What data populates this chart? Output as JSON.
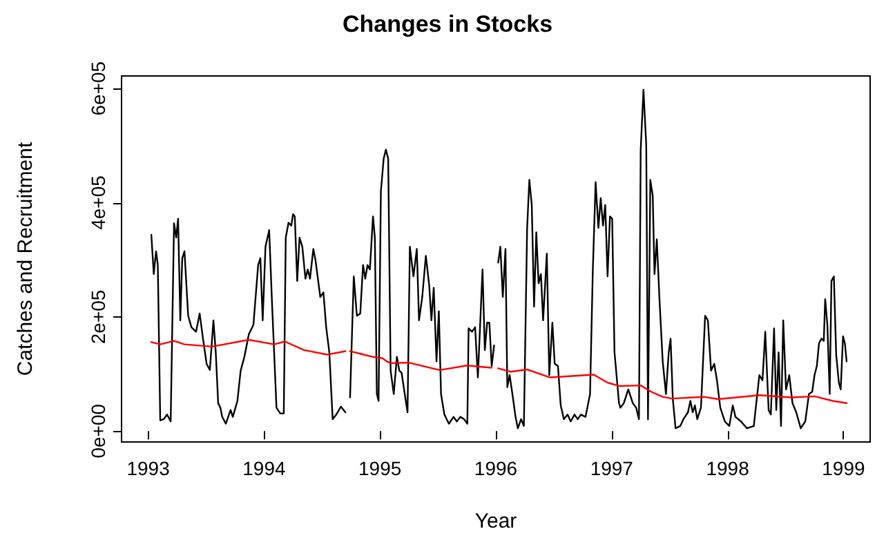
{
  "chart_data": {
    "type": "line",
    "title": "Changes in Stocks",
    "xlabel": "Year",
    "ylabel": "Catches and Recruitment",
    "marker": "none",
    "grid": false,
    "xlim": [
      1992.77,
      1999.23
    ],
    "xticks": [
      1993,
      1994,
      1995,
      1996,
      1997,
      1998,
      1999
    ],
    "ylim": [
      -19000,
      622000
    ],
    "yticks": [
      {
        "value": 0,
        "label": "0e+00"
      },
      {
        "value": 200000,
        "label": "2e+05"
      },
      {
        "value": 400000,
        "label": "4e+05"
      },
      {
        "value": 600000,
        "label": "6e+05"
      }
    ],
    "series": [
      {
        "color": "#000000",
        "x": [
          1993.027,
          1993.048,
          1993.068,
          1993.083,
          1993.104,
          1993.135,
          1993.163,
          1993.194,
          1993.223,
          1993.242,
          1993.258,
          1993.277,
          1993.294,
          1993.313,
          1993.345,
          1993.373,
          1993.413,
          1993.444,
          1993.473,
          1993.504,
          1993.532,
          1993.563,
          1993.583,
          1993.604,
          1993.623,
          1993.639,
          1993.67,
          1993.711,
          1993.73,
          1993.77,
          1993.798,
          1993.83,
          1993.869,
          1993.908,
          1993.949,
          1993.968,
          1993.988,
          1994.012,
          1994.044,
          1994.068,
          1994.107,
          1994.139,
          1994.17,
          1994.187,
          1994.211,
          1994.235,
          1994.25,
          1994.265,
          1994.286,
          1994.306,
          1994.33,
          1994.357,
          1994.377,
          1994.396,
          1994.425,
          1994.444,
          1994.485,
          1994.512,
          1994.536,
          1994.563,
          1994.592,
          1994.623,
          1994.663,
          1994.702,
          1994.722,
          1994.742,
          1994.774,
          1994.801,
          1994.83,
          1994.854,
          1994.873,
          1994.893,
          1994.913,
          1994.94,
          1994.956,
          1994.973,
          1994.988,
          1995.008,
          1995.032,
          1995.051,
          1995.071,
          1995.092,
          1995.119,
          1995.146,
          1995.167,
          1995.187,
          1995.211,
          1995.238,
          1995.258,
          1995.289,
          1995.318,
          1995.337,
          1995.365,
          1995.396,
          1995.425,
          1995.444,
          1995.464,
          1995.488,
          1995.508,
          1995.527,
          1995.556,
          1995.595,
          1995.635,
          1995.663,
          1995.694,
          1995.726,
          1995.754,
          1995.765,
          1995.794,
          1995.821,
          1995.845,
          1995.885,
          1995.905,
          1995.925,
          1995.944,
          1995.964,
          1995.985,
          1996.002,
          1996.02,
          1996.039,
          1996.06,
          1996.083,
          1996.099,
          1996.119,
          1996.143,
          1996.17,
          1996.19,
          1996.218,
          1996.242,
          1996.27,
          1996.289,
          1996.31,
          1996.33,
          1996.349,
          1996.369,
          1996.389,
          1996.408,
          1996.44,
          1996.461,
          1996.488,
          1996.508,
          1996.536,
          1996.56,
          1996.587,
          1996.619,
          1996.646,
          1996.679,
          1996.706,
          1996.735,
          1996.774,
          1996.813,
          1996.837,
          1996.861,
          1996.885,
          1996.905,
          1996.925,
          1996.944,
          1996.964,
          1996.985,
          1997.004,
          1997.024,
          1997.063,
          1997.075,
          1997.104,
          1997.143,
          1997.182,
          1997.211,
          1997.235,
          1997.25,
          1997.274,
          1997.298,
          1997.313,
          1997.333,
          1997.354,
          1997.369,
          1997.389,
          1997.413,
          1997.44,
          1997.468,
          1997.492,
          1997.508,
          1997.527,
          1997.551,
          1997.592,
          1997.619,
          1997.658,
          1997.679,
          1997.699,
          1997.718,
          1997.738,
          1997.77,
          1997.806,
          1997.83,
          1997.857,
          1997.885,
          1997.908,
          1997.937,
          1997.976,
          1998.015,
          1998.044,
          1998.068,
          1998.115,
          1998.167,
          1998.226,
          1998.274,
          1998.301,
          1998.325,
          1998.354,
          1998.373,
          1998.401,
          1998.42,
          1998.44,
          1998.461,
          1998.48,
          1998.504,
          1998.532,
          1998.56,
          1998.592,
          1998.631,
          1998.67,
          1998.702,
          1998.73,
          1998.75,
          1998.77,
          1998.789,
          1998.81,
          1998.83,
          1998.842,
          1998.861,
          1998.881,
          1998.896,
          1998.917,
          1998.937,
          1998.96,
          1998.976,
          1998.996,
          1999.012,
          1999.027
        ],
        "values": [
          344000,
          275000,
          315000,
          291000,
          19000,
          21000,
          29000,
          17000,
          364000,
          339000,
          372000,
          194000,
          303000,
          315000,
          202000,
          182000,
          174000,
          206000,
          162000,
          118000,
          107000,
          194000,
          138000,
          49000,
          41000,
          25000,
          13000,
          37000,
          25000,
          53000,
          106000,
          130000,
          170000,
          186000,
          291000,
          303000,
          194000,
          323000,
          352000,
          227000,
          41000,
          31000,
          31000,
          339000,
          365000,
          360000,
          380000,
          376000,
          263000,
          339000,
          323000,
          267000,
          283000,
          267000,
          319000,
          299000,
          235000,
          243000,
          182000,
          138000,
          21000,
          29000,
          43000,
          33000,
          null,
          59000,
          271000,
          202000,
          206000,
          291000,
          267000,
          291000,
          283000,
          376000,
          339000,
          65000,
          53000,
          420000,
          477000,
          493000,
          477000,
          106000,
          65000,
          130000,
          106000,
          102000,
          69000,
          33000,
          323000,
          271000,
          319000,
          194000,
          235000,
          307000,
          255000,
          194000,
          251000,
          122000,
          210000,
          65000,
          29000,
          13000,
          25000,
          17000,
          25000,
          21000,
          13000,
          180000,
          174000,
          182000,
          94000,
          283000,
          142000,
          190000,
          190000,
          114000,
          150000,
          null,
          295000,
          323000,
          235000,
          319000,
          77000,
          98000,
          65000,
          25000,
          5000,
          21000,
          9000,
          356000,
          440000,
          396000,
          218000,
          348000,
          259000,
          275000,
          194000,
          311000,
          98000,
          190000,
          118000,
          114000,
          45000,
          21000,
          29000,
          17000,
          29000,
          21000,
          29000,
          25000,
          65000,
          283000,
          436000,
          356000,
          408000,
          360000,
          396000,
          271000,
          376000,
          372000,
          138000,
          49000,
          41000,
          49000,
          73000,
          49000,
          41000,
          21000,
          493000,
          598000,
          501000,
          21000,
          440000,
          412000,
          275000,
          336000,
          227000,
          122000,
          65000,
          138000,
          162000,
          57000,
          5000,
          9000,
          21000,
          33000,
          53000,
          33000,
          45000,
          21000,
          41000,
          202000,
          194000,
          106000,
          118000,
          89000,
          41000,
          17000,
          9000,
          45000,
          25000,
          17000,
          5000,
          9000,
          98000,
          89000,
          174000,
          37000,
          29000,
          180000,
          37000,
          138000,
          9000,
          194000,
          73000,
          98000,
          49000,
          33000,
          5000,
          17000,
          65000,
          69000,
          98000,
          114000,
          154000,
          162000,
          158000,
          231000,
          186000,
          65000,
          263000,
          271000,
          134000,
          85000,
          73000,
          166000,
          154000,
          122000
        ]
      },
      {
        "color": "#ff0000",
        "x": [
          1993.027,
          1993.104,
          1993.223,
          1993.313,
          1993.551,
          1993.869,
          1994.087,
          1994.179,
          1994.345,
          1994.544,
          1994.702,
          1994.722,
          1994.742,
          1994.861,
          1994.94,
          1995.02,
          1995.06,
          1995.092,
          1995.25,
          1995.515,
          1995.754,
          1995.964,
          1996.002,
          1996.02,
          1996.131,
          1996.27,
          1996.468,
          1996.845,
          1996.964,
          1997.063,
          1997.25,
          1997.341,
          1997.44,
          1997.52,
          1997.798,
          1997.917,
          1998.274,
          1998.551,
          1998.75,
          1998.908,
          1999.027
        ],
        "values": [
          156000,
          152000,
          158000,
          152000,
          148000,
          160000,
          152000,
          157000,
          142000,
          134000,
          140000,
          null,
          140000,
          134000,
          130000,
          128000,
          122000,
          119000,
          120000,
          107000,
          115000,
          111000,
          null,
          110000,
          104000,
          108000,
          94000,
          99000,
          85000,
          79000,
          80000,
          69000,
          60000,
          57000,
          60000,
          56000,
          63000,
          59000,
          61000,
          53000,
          49000
        ]
      }
    ]
  }
}
